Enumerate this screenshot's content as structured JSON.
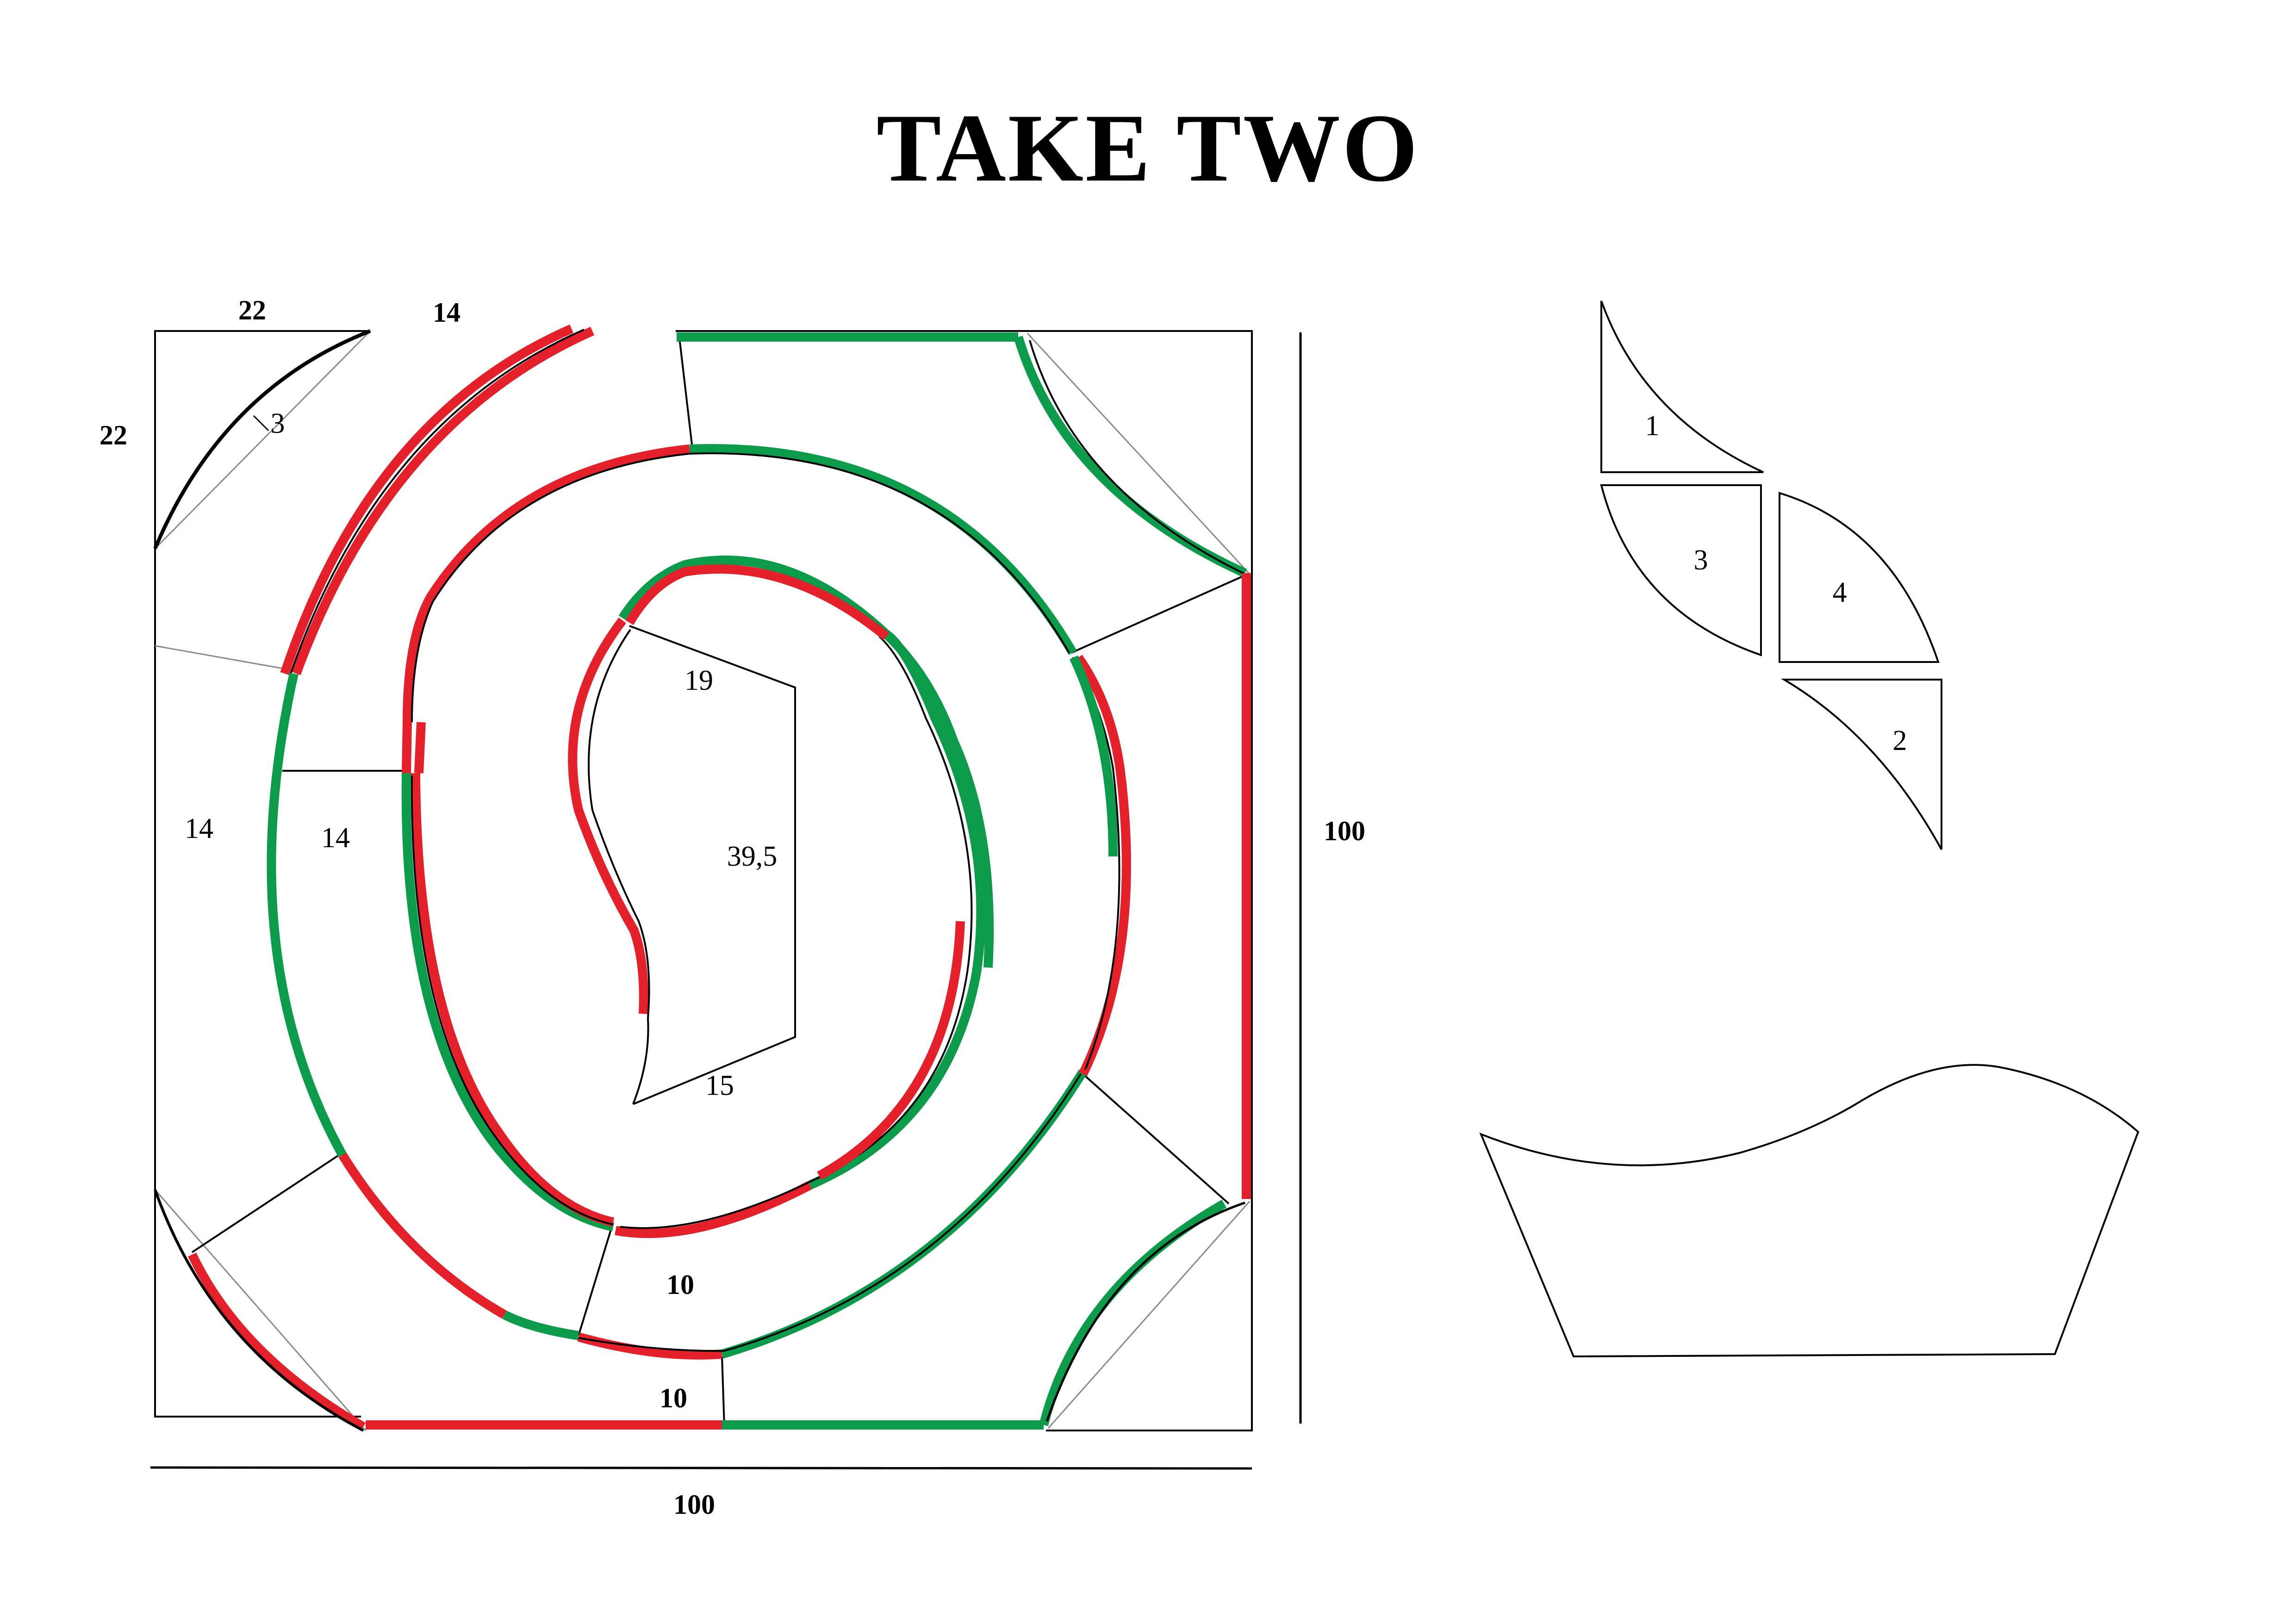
{
  "title": "TAKE TWO",
  "colors": {
    "red": "#e4202a",
    "green": "#0c9b4a",
    "line": "#000000",
    "guide": "#8a8a8a"
  },
  "dimensions": {
    "top_22": "22",
    "top_14": "14",
    "left_22": "22",
    "arc_3": "3",
    "left_14_outer": "14",
    "left_14_inner": "14",
    "center_19": "19",
    "center_39_5": "39,5",
    "center_15": "15",
    "bottom_10_inner": "10",
    "bottom_10_outer": "10",
    "width_100": "100",
    "height_100": "100"
  },
  "pieces": {
    "p1": "1",
    "p2": "2",
    "p3": "3",
    "p4": "4"
  }
}
